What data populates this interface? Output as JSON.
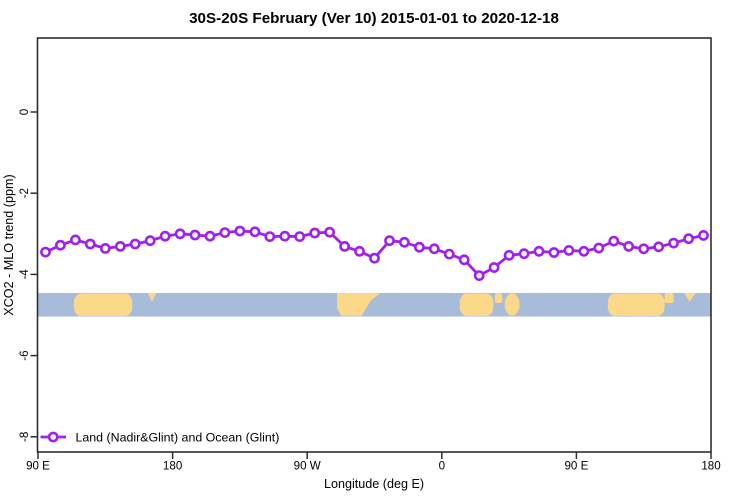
{
  "title": "30S-20S February (Ver 10)  2015-01-01 to 2020-12-18",
  "legend": {
    "label": "Land (Nadir&Glint) and Ocean (Glint)"
  },
  "axes": {
    "x": {
      "label": "Longitude (deg E)",
      "ticks": [
        {
          "lon": 90,
          "label": "90 E"
        },
        {
          "lon": 180,
          "label": "180"
        },
        {
          "lon": 270,
          "label": "90 W"
        },
        {
          "lon": 360,
          "label": "0"
        },
        {
          "lon": 450,
          "label": "90 E"
        },
        {
          "lon": 540,
          "label": "180"
        }
      ]
    },
    "y": {
      "label": "XCO2 - MLO trend (ppm)",
      "ticks": [
        {
          "value": 0,
          "label": "0"
        },
        {
          "value": -2,
          "label": "-2"
        },
        {
          "value": -4,
          "label": "-4"
        },
        {
          "value": -6,
          "label": "-6"
        },
        {
          "value": -8,
          "label": "-8"
        }
      ]
    }
  },
  "colors": {
    "series": "#a020f0",
    "marker_fill": "#ffffff",
    "ocean": "#a6bcd9",
    "land": "#fbd88a",
    "frame": "#2e2e2e",
    "text": "#000000"
  },
  "map_band": {
    "description": "30S-20S latitude strip: ocean (blue) and land (tan) vs longitude",
    "patches": [
      {
        "name": "australia-west",
        "lon": [
          114,
          153
        ],
        "shape": "blob"
      },
      {
        "name": "new-caledonia-west",
        "lon": [
          163.5,
          169
        ],
        "shape": "top-wedge"
      },
      {
        "name": "south-america",
        "lon": [
          290,
          319
        ],
        "shape": "south-america"
      },
      {
        "name": "africa",
        "lon": [
          372,
          394.5
        ],
        "shape": "blob"
      },
      {
        "name": "mozambique-coast",
        "lon": [
          395.5,
          400.5
        ],
        "shape": "top-half"
      },
      {
        "name": "madagascar",
        "lon": [
          402,
          412
        ],
        "shape": "island"
      },
      {
        "name": "australia-east",
        "lon": [
          471,
          509
        ],
        "shape": "blob"
      },
      {
        "name": "australia-east-tip",
        "lon": [
          509,
          515
        ],
        "shape": "top-half"
      },
      {
        "name": "new-caledonia-east",
        "lon": [
          522,
          529.5
        ],
        "shape": "top-wedge"
      }
    ]
  },
  "chart_data": {
    "type": "line",
    "title": "30S-20S February (Ver 10)  2015-01-01 to 2020-12-18",
    "xlabel": "Longitude (deg E)",
    "ylabel": "XCO2 - MLO trend (ppm)",
    "xlim": [
      90,
      540
    ],
    "ylim": [
      -8.4,
      1.8
    ],
    "xtick_labels": [
      "90 E",
      "180",
      "90 W",
      "0",
      "90 E",
      "180"
    ],
    "ytick_values": [
      0,
      -2,
      -4,
      -6,
      -8
    ],
    "grid": false,
    "legend_position": "bottom-left",
    "marker": "open-circle",
    "x": [
      95,
      105,
      115,
      125,
      135,
      145,
      155,
      165,
      175,
      185,
      195,
      205,
      215,
      225,
      235,
      245,
      255,
      265,
      275,
      285,
      295,
      305,
      315,
      325,
      335,
      345,
      355,
      365,
      375,
      385,
      395,
      405,
      415,
      425,
      435,
      445,
      455,
      465,
      475,
      485,
      495,
      505,
      515,
      525,
      535
    ],
    "series": [
      {
        "name": "Land (Nadir&Glint) and Ocean (Glint)",
        "color": "#a020f0",
        "values": [
          -3.45,
          -3.28,
          -3.15,
          -3.25,
          -3.36,
          -3.31,
          -3.25,
          -3.17,
          -3.06,
          -3.0,
          -3.03,
          -3.06,
          -2.97,
          -2.93,
          -2.95,
          -3.07,
          -3.06,
          -3.07,
          -2.98,
          -2.96,
          -3.31,
          -3.43,
          -3.6,
          -3.17,
          -3.21,
          -3.33,
          -3.37,
          -3.5,
          -3.64,
          -4.03,
          -3.83,
          -3.53,
          -3.49,
          -3.43,
          -3.46,
          -3.41,
          -3.43,
          -3.35,
          -3.18,
          -3.31,
          -3.37,
          -3.32,
          -3.23,
          -3.12,
          -3.04
        ]
      }
    ]
  }
}
